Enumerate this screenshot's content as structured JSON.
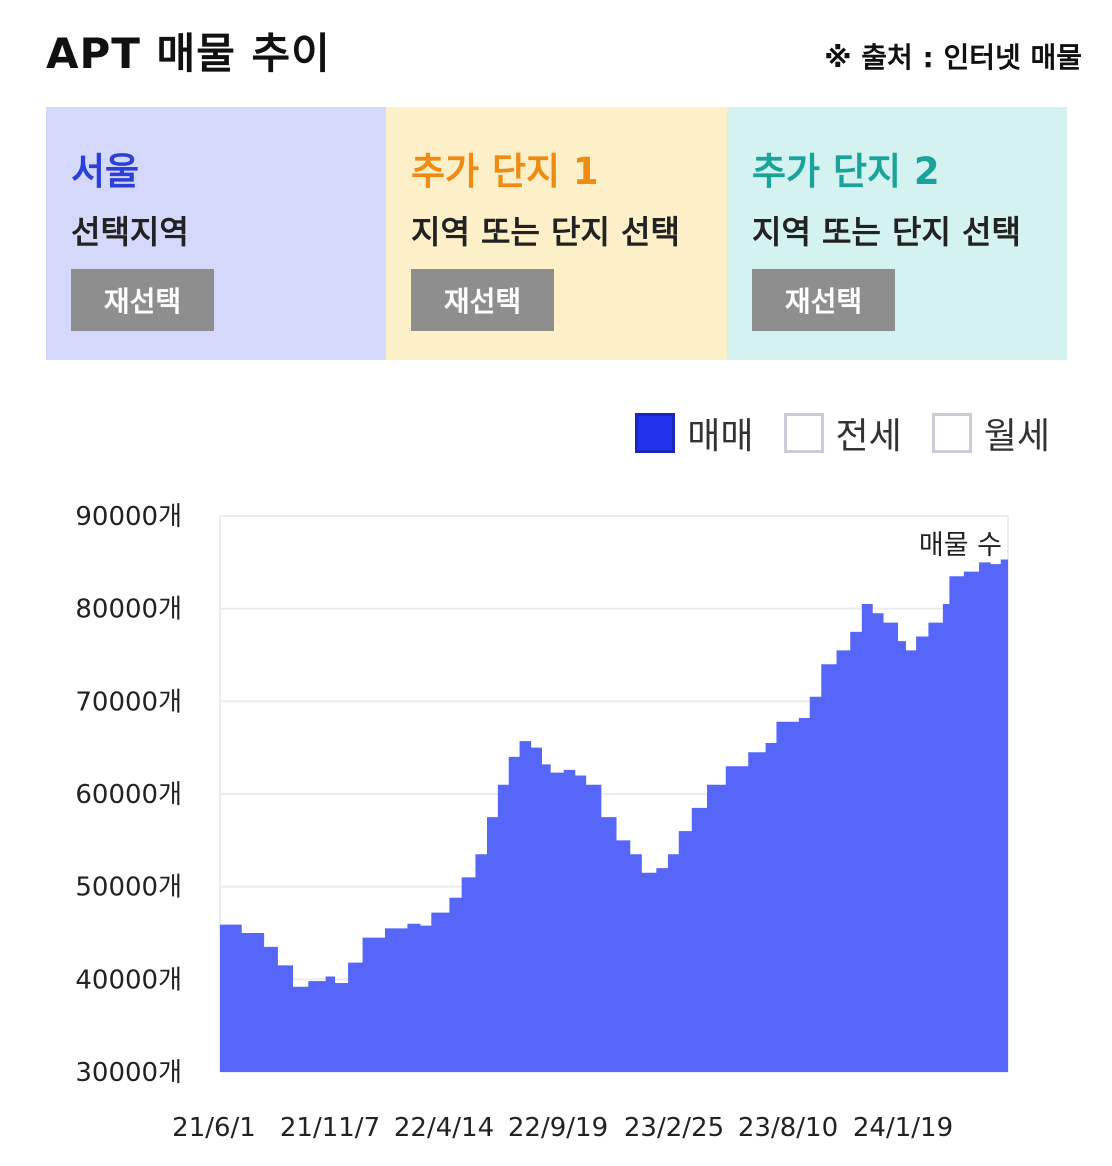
{
  "header": {
    "title": "APT 매물 추이",
    "source": "※ 출처 : 인터넷 매물"
  },
  "panels": [
    {
      "name": "서울",
      "subtitle": "선택지역",
      "button": "재선택",
      "accent": "#2b3fd9"
    },
    {
      "name": "추가 단지 1",
      "subtitle": "지역 또는 단지 선택",
      "button": "재선택",
      "accent": "#f08a10"
    },
    {
      "name": "추가 단지 2",
      "subtitle": "지역 또는 단지 선택",
      "button": "재선택",
      "accent": "#19a39a"
    }
  ],
  "legend": [
    {
      "label": "매매",
      "checked": true
    },
    {
      "label": "전세",
      "checked": false
    },
    {
      "label": "월세",
      "checked": false
    }
  ],
  "chart_data": {
    "type": "area",
    "color": "#5566f8",
    "ylim": [
      30000,
      90000
    ],
    "yticks": [
      "90000개",
      "80000개",
      "70000개",
      "60000개",
      "50000개",
      "40000개",
      "30000개"
    ],
    "xticks": [
      "21/6/1",
      "21/11/7",
      "22/4/14",
      "22/9/19",
      "23/2/25",
      "23/8/10",
      "24/1/19"
    ],
    "series": [
      {
        "name": "매물 수",
        "points": [
          [
            "21/6/1",
            45900
          ],
          [
            "21/7/1",
            45000
          ],
          [
            "21/8/1",
            43500
          ],
          [
            "21/8/20",
            41500
          ],
          [
            "21/9/10",
            39200
          ],
          [
            "21/10/1",
            39800
          ],
          [
            "21/10/25",
            40300
          ],
          [
            "21/11/7",
            39600
          ],
          [
            "21/11/25",
            41800
          ],
          [
            "21/12/15",
            44500
          ],
          [
            "22/1/15",
            45500
          ],
          [
            "22/2/15",
            46000
          ],
          [
            "22/3/5",
            45800
          ],
          [
            "22/3/20",
            47200
          ],
          [
            "22/4/14",
            48800
          ],
          [
            "22/5/1",
            51000
          ],
          [
            "22/5/20",
            53500
          ],
          [
            "22/6/5",
            57500
          ],
          [
            "22/6/20",
            61000
          ],
          [
            "22/7/5",
            64000
          ],
          [
            "22/7/20",
            65700
          ],
          [
            "22/8/5",
            65000
          ],
          [
            "22/8/20",
            63200
          ],
          [
            "22/9/1",
            62300
          ],
          [
            "22/9/19",
            62600
          ],
          [
            "22/10/5",
            62000
          ],
          [
            "22/10/20",
            61000
          ],
          [
            "22/11/10",
            57500
          ],
          [
            "22/12/1",
            55000
          ],
          [
            "22/12/20",
            53500
          ],
          [
            "23/1/5",
            51500
          ],
          [
            "23/1/25",
            52000
          ],
          [
            "23/2/10",
            53500
          ],
          [
            "23/2/25",
            56000
          ],
          [
            "23/3/15",
            58500
          ],
          [
            "23/4/5",
            61000
          ],
          [
            "23/5/1",
            63000
          ],
          [
            "23/6/1",
            64500
          ],
          [
            "23/6/25",
            65500
          ],
          [
            "23/7/10",
            67800
          ],
          [
            "23/8/10",
            68200
          ],
          [
            "23/8/25",
            70500
          ],
          [
            "23/9/10",
            74000
          ],
          [
            "23/10/1",
            75500
          ],
          [
            "23/10/20",
            77500
          ],
          [
            "23/11/5",
            80500
          ],
          [
            "23/11/20",
            79500
          ],
          [
            "23/12/5",
            78500
          ],
          [
            "23/12/25",
            76500
          ],
          [
            "24/1/5",
            75500
          ],
          [
            "24/1/19",
            77000
          ],
          [
            "24/2/5",
            78500
          ],
          [
            "24/2/25",
            80500
          ],
          [
            "24/3/5",
            83500
          ],
          [
            "24/3/25",
            84000
          ],
          [
            "24/4/15",
            85000
          ],
          [
            "24/5/1",
            84800
          ],
          [
            "24/5/15",
            85300
          ],
          [
            "24/5/25",
            84900
          ]
        ]
      }
    ]
  }
}
